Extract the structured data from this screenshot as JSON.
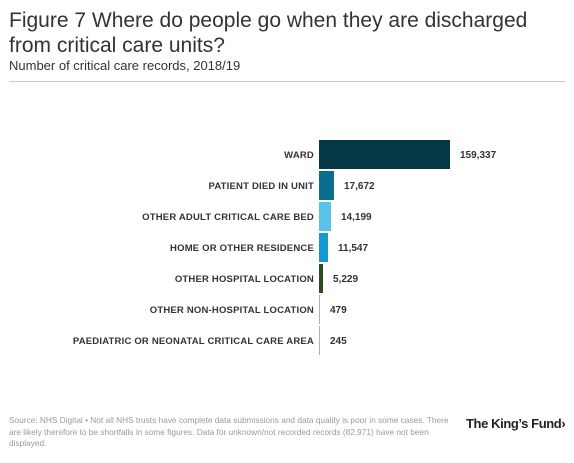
{
  "title": "Figure 7 Where do people go when they are discharged from critical care units?",
  "subtitle": "Number of critical care records, 2018/19",
  "source_note": "Source: NHS Digital • Not all NHS trusts have complete data submissions and data quality is poor in some cases. There are likely therefore to be shortfalls in some figures. Data for unknown/not recorded records (82,971) have not been displayed.",
  "logo_text": "The King’s Fund›",
  "chart_data": {
    "type": "bar",
    "orientation": "horizontal",
    "title": "Figure 7 Where do people go when they are discharged from critical care units?",
    "subtitle": "Number of critical care records, 2018/19",
    "categories": [
      "WARD",
      "PATIENT DIED IN UNIT",
      "OTHER ADULT CRITICAL CARE BED",
      "HOME OR OTHER RESIDENCE",
      "OTHER HOSPITAL LOCATION",
      "OTHER NON-HOSPITAL LOCATION",
      "PAEDIATRIC OR NEONATAL CRITICAL CARE AREA"
    ],
    "values": [
      159337,
      17672,
      14199,
      11547,
      5229,
      479,
      245
    ],
    "value_labels": [
      "159,337",
      "17,672",
      "14,199",
      "11,547",
      "5,229",
      "479",
      "245"
    ],
    "colors": [
      "#053845",
      "#0b6e8f",
      "#5ac3ea",
      "#1499d4",
      "#2e4a1f",
      "#b0b0b0",
      "#b0b0b0"
    ],
    "xlim": [
      0,
      159337
    ],
    "grid": false,
    "legend": "none"
  }
}
